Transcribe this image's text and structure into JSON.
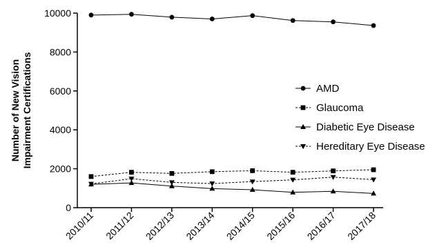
{
  "chart_data": {
    "type": "line",
    "title": "",
    "xlabel": "",
    "ylabel_line1": "Number of New Vision",
    "ylabel_line2": "Impairment Certifications",
    "categories": [
      "2010/11",
      "2011/12",
      "2012/13",
      "2013/14",
      "2014/15",
      "2015/16",
      "2016/17",
      "2017/18"
    ],
    "ylim": [
      0,
      10000
    ],
    "yticks": [
      0,
      2000,
      4000,
      6000,
      8000,
      10000
    ],
    "grid": false,
    "legend_position": "right",
    "series": [
      {
        "name": "AMD",
        "marker": "circle",
        "dash": "solid",
        "values": [
          9900,
          9940,
          9790,
          9700,
          9870,
          9620,
          9550,
          9360
        ]
      },
      {
        "name": "Glaucoma",
        "marker": "square",
        "dash": "dashed",
        "values": [
          1600,
          1820,
          1760,
          1850,
          1900,
          1820,
          1890,
          1950
        ]
      },
      {
        "name": "Diabetic Eye Disease",
        "marker": "triangle-up",
        "dash": "solid",
        "values": [
          1200,
          1270,
          1110,
          980,
          920,
          790,
          840,
          730
        ]
      },
      {
        "name": "Hereditary Eye Disease",
        "marker": "triangle-down",
        "dash": "dashed",
        "values": [
          1220,
          1490,
          1300,
          1240,
          1340,
          1430,
          1570,
          1440
        ]
      }
    ]
  }
}
